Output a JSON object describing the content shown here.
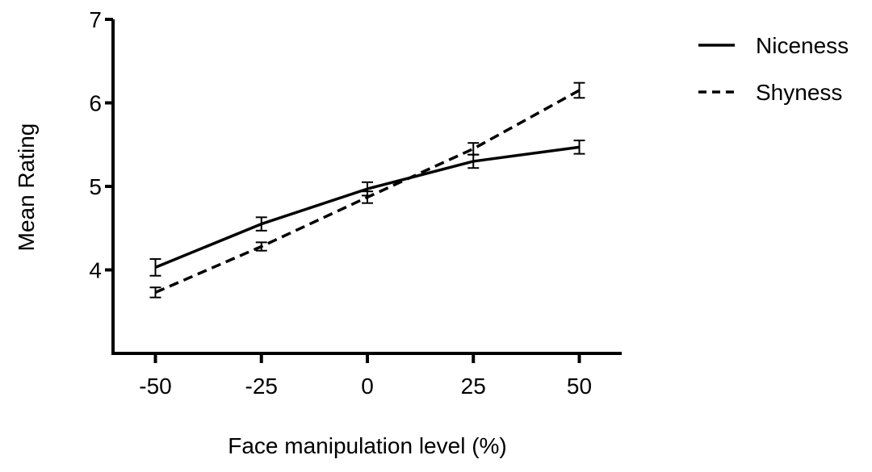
{
  "chart_data": {
    "type": "line",
    "title": "",
    "xlabel": "Face manipulation level (%)",
    "ylabel": "Mean Rating",
    "x": [
      -50,
      -25,
      0,
      25,
      50
    ],
    "x_tick_labels": [
      "-50",
      "-25",
      "0",
      "25",
      "50"
    ],
    "xlim": [
      -60,
      60
    ],
    "ylim": [
      3,
      7
    ],
    "y_ticks": [
      4,
      5,
      6,
      7
    ],
    "y_tick_labels": [
      "4",
      "5",
      "6",
      "7"
    ],
    "grid": false,
    "legend_position": "top-right",
    "series": [
      {
        "name": "Niceness",
        "line_style": "solid",
        "color": "#000000",
        "values": [
          4.03,
          4.55,
          4.97,
          5.3,
          5.47
        ],
        "errors": [
          0.1,
          0.08,
          0.08,
          0.08,
          0.08
        ]
      },
      {
        "name": "Shyness",
        "line_style": "dashed",
        "color": "#000000",
        "values": [
          3.73,
          4.28,
          4.87,
          5.45,
          6.15
        ],
        "errors": [
          0.06,
          0.05,
          0.07,
          0.07,
          0.09
        ]
      }
    ]
  }
}
